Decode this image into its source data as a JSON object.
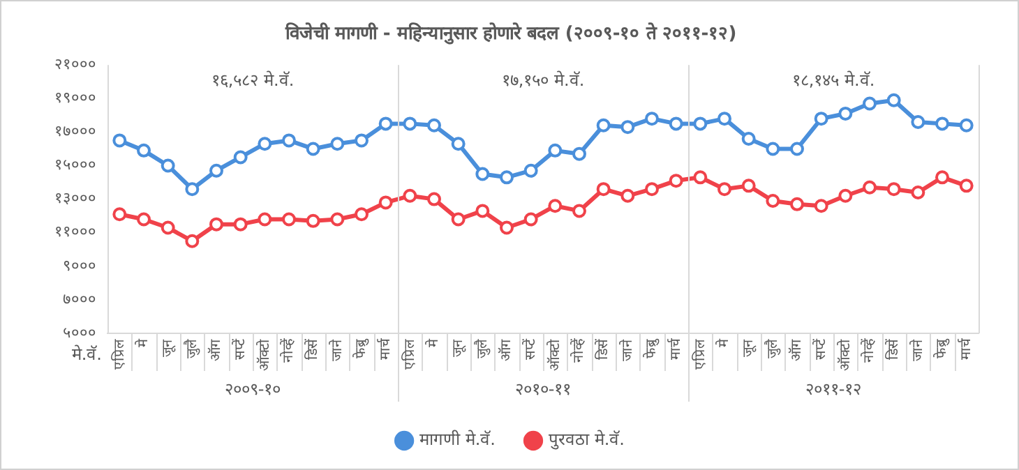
{
  "chart_data": {
    "type": "line",
    "title": "विजेची मागणी - महिन्यानुसार होणारे बदल (२००९-१० ते २०११-१२)",
    "ylabel": "मे.वॅ.",
    "categories": [
      "एप्रिल",
      "मे",
      "जून",
      "जुलै",
      "ऑग",
      "सप्टें",
      "ऑक्टो",
      "नोव्हें",
      "डिसें",
      "जाने",
      "फेब्रु",
      "मार्च",
      "एप्रिल",
      "मे",
      "जून",
      "जुलै",
      "ऑग",
      "सप्टें",
      "ऑक्टो",
      "नोव्हें",
      "डिसें",
      "जाने",
      "फेब्रु",
      "मार्च",
      "एप्रिल",
      "मे",
      "जून",
      "जुलै",
      "ऑग",
      "सप्टें",
      "ऑक्टो",
      "नोव्हें",
      "डिसें",
      "जाने",
      "फेब्रु",
      "मार्च"
    ],
    "series": [
      {
        "name": "मागणी मे.वॅ.",
        "color": "#4a8fdb",
        "values": [
          16500,
          15900,
          15000,
          13600,
          14700,
          15500,
          16300,
          16500,
          16000,
          16300,
          16500,
          17500,
          17500,
          17400,
          16300,
          14500,
          14300,
          14700,
          15900,
          15700,
          17400,
          17300,
          17800,
          17500,
          17500,
          17800,
          16600,
          16000,
          16000,
          17800,
          18100,
          18700,
          18900,
          17600,
          17500,
          17400
        ]
      },
      {
        "name": "पुरवठा मे.वॅ.",
        "color": "#f0424a",
        "values": [
          12100,
          11800,
          11300,
          10500,
          11500,
          11500,
          11800,
          11800,
          11700,
          11800,
          12100,
          12800,
          13200,
          13000,
          11800,
          12300,
          11300,
          11800,
          12600,
          12300,
          13600,
          13200,
          13600,
          14100,
          14300,
          13600,
          13800,
          12900,
          12700,
          12600,
          13200,
          13700,
          13600,
          13400,
          14300,
          13800
        ]
      }
    ],
    "ylim": [
      5000,
      21000
    ],
    "yticks": [
      {
        "value": 5000,
        "label": "५०००"
      },
      {
        "value": 7000,
        "label": "७०००"
      },
      {
        "value": 9000,
        "label": "९०००"
      },
      {
        "value": 11000,
        "label": "११०००"
      },
      {
        "value": 13000,
        "label": "१३०००"
      },
      {
        "value": 15000,
        "label": "१५०००"
      },
      {
        "value": 17000,
        "label": "१७०००"
      },
      {
        "value": 19000,
        "label": "१९०००"
      },
      {
        "value": 21000,
        "label": "२१०००"
      }
    ],
    "annotations": [
      "१६,५८२ मे.वॅ.",
      "१७,१५० मे.वॅ.",
      "१८,१४५ मे.वॅ.",
      "२००९-१०",
      "२०१०-११",
      "२०११-१२"
    ],
    "grid": false,
    "legend": "bottom",
    "marker": "circle",
    "line_style": "solid"
  }
}
